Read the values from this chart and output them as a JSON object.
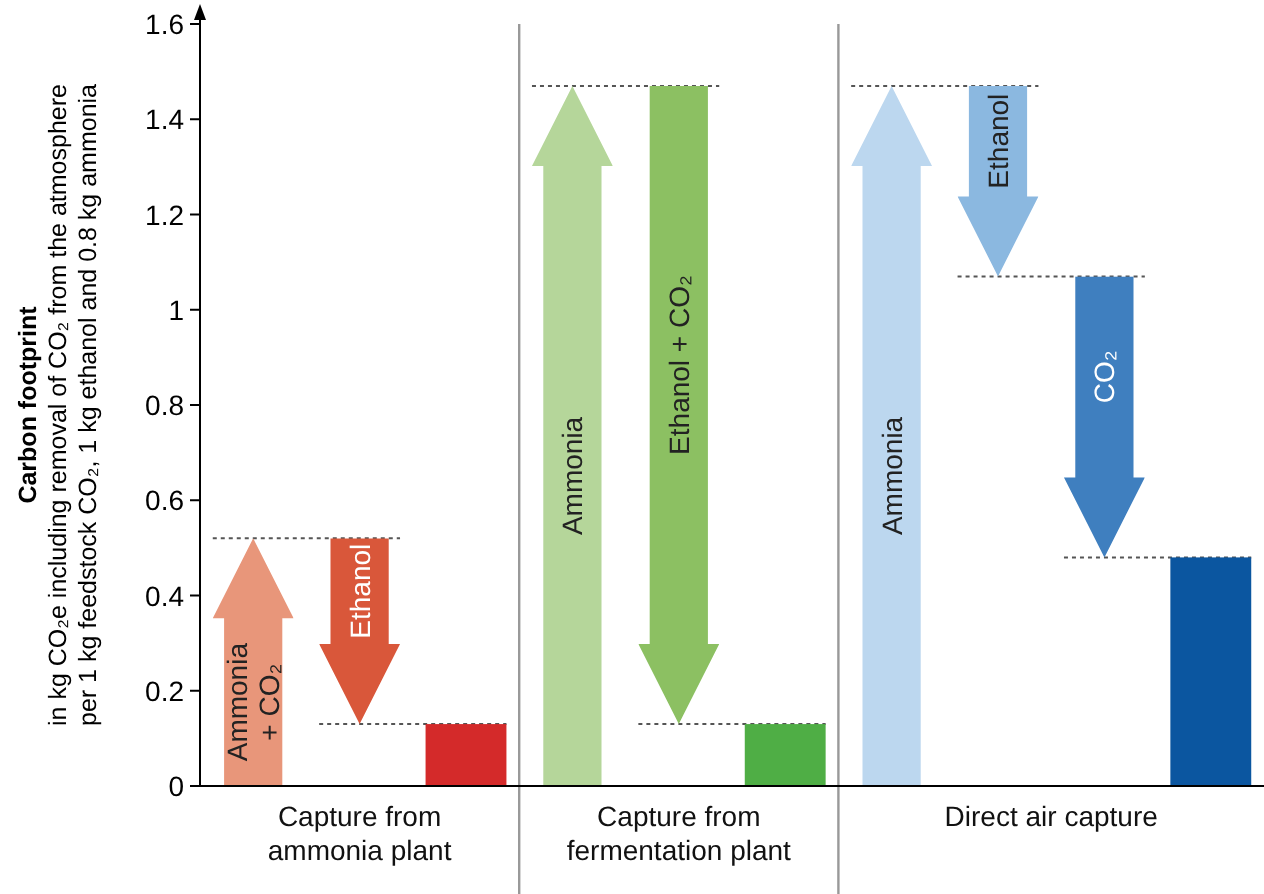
{
  "chart_data": {
    "type": "bar",
    "ylabel": "Carbon footprint\nin kg CO₂e including removal of CO₂ from the atmosphere\nper 1 kg feedstock CO₂, 1 kg ethanol and 0.8 kg ammonia",
    "categories": [
      "Ammonia + CO₂",
      "Ethanol",
      null,
      "Ammonia",
      "Ethanol + CO₂",
      null,
      "Ammonia",
      "Ethanol",
      "CO₂",
      null
    ],
    "values": [
      0.52,
      -0.39,
      0.13,
      1.47,
      -1.34,
      0.13,
      1.47,
      -0.4,
      -0.59,
      0.48
    ],
    "base": [
      0,
      0.52,
      0,
      0,
      1.47,
      0,
      0,
      1.47,
      1.07,
      0
    ],
    "colors": [
      "#e8967a",
      "#d9573a",
      "#d42a2a",
      "#b5d69a",
      "#8cc062",
      "#4fae45",
      "#bcd7ef",
      "#8bb8e0",
      "#3f7fbf",
      "#0b56a0"
    ],
    "ref_lines": [
      {
        "axis": "y",
        "value": 0.52,
        "line_style": "dotted",
        "color": "#555555"
      },
      {
        "axis": "y",
        "value": 0.13,
        "line_style": "dotted",
        "color": "#555555"
      },
      {
        "axis": "y",
        "value": 1.47,
        "line_style": "dotted",
        "color": "#555555"
      },
      {
        "axis": "y",
        "value": 1.07,
        "line_style": "dotted",
        "color": "#555555"
      },
      {
        "axis": "y",
        "value": 0.48,
        "line_style": "dotted",
        "color": "#555555"
      }
    ],
    "ylim": [
      0,
      1.6
    ],
    "yticks": [
      0,
      0.2,
      0.4,
      0.6,
      0.8,
      1,
      1.2,
      1.4,
      1.6
    ],
    "grid": false,
    "annotations": [
      "Capture from\nammonia plant",
      "Capture from\nfermentation plant",
      "Direct air capture"
    ]
  }
}
